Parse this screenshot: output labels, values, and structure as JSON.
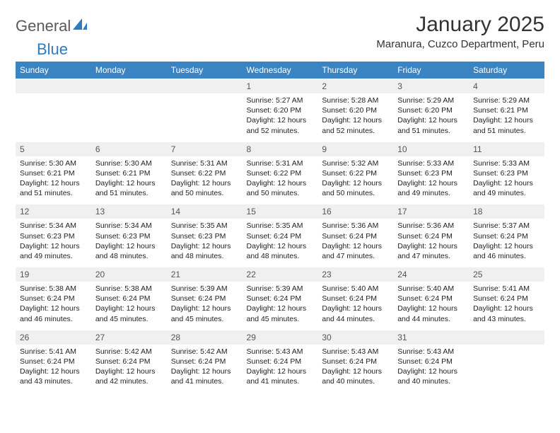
{
  "logo": {
    "part1": "General",
    "part2": "Blue"
  },
  "title": "January 2025",
  "subtitle": "Maranura, Cuzco Department, Peru",
  "colors": {
    "header_bg": "#3b84c4",
    "header_text": "#ffffff",
    "daynum_bg": "#f0f0f0",
    "daynum_text": "#555555",
    "body_text": "#222222",
    "logo_gray": "#5a5a5a",
    "logo_blue": "#2f7bbf"
  },
  "weekdays": [
    "Sunday",
    "Monday",
    "Tuesday",
    "Wednesday",
    "Thursday",
    "Friday",
    "Saturday"
  ],
  "weeks": [
    [
      null,
      null,
      null,
      {
        "d": "1",
        "sr": "5:27 AM",
        "ss": "6:20 PM",
        "dl": "12 hours and 52 minutes."
      },
      {
        "d": "2",
        "sr": "5:28 AM",
        "ss": "6:20 PM",
        "dl": "12 hours and 52 minutes."
      },
      {
        "d": "3",
        "sr": "5:29 AM",
        "ss": "6:20 PM",
        "dl": "12 hours and 51 minutes."
      },
      {
        "d": "4",
        "sr": "5:29 AM",
        "ss": "6:21 PM",
        "dl": "12 hours and 51 minutes."
      }
    ],
    [
      {
        "d": "5",
        "sr": "5:30 AM",
        "ss": "6:21 PM",
        "dl": "12 hours and 51 minutes."
      },
      {
        "d": "6",
        "sr": "5:30 AM",
        "ss": "6:21 PM",
        "dl": "12 hours and 51 minutes."
      },
      {
        "d": "7",
        "sr": "5:31 AM",
        "ss": "6:22 PM",
        "dl": "12 hours and 50 minutes."
      },
      {
        "d": "8",
        "sr": "5:31 AM",
        "ss": "6:22 PM",
        "dl": "12 hours and 50 minutes."
      },
      {
        "d": "9",
        "sr": "5:32 AM",
        "ss": "6:22 PM",
        "dl": "12 hours and 50 minutes."
      },
      {
        "d": "10",
        "sr": "5:33 AM",
        "ss": "6:23 PM",
        "dl": "12 hours and 49 minutes."
      },
      {
        "d": "11",
        "sr": "5:33 AM",
        "ss": "6:23 PM",
        "dl": "12 hours and 49 minutes."
      }
    ],
    [
      {
        "d": "12",
        "sr": "5:34 AM",
        "ss": "6:23 PM",
        "dl": "12 hours and 49 minutes."
      },
      {
        "d": "13",
        "sr": "5:34 AM",
        "ss": "6:23 PM",
        "dl": "12 hours and 48 minutes."
      },
      {
        "d": "14",
        "sr": "5:35 AM",
        "ss": "6:23 PM",
        "dl": "12 hours and 48 minutes."
      },
      {
        "d": "15",
        "sr": "5:35 AM",
        "ss": "6:24 PM",
        "dl": "12 hours and 48 minutes."
      },
      {
        "d": "16",
        "sr": "5:36 AM",
        "ss": "6:24 PM",
        "dl": "12 hours and 47 minutes."
      },
      {
        "d": "17",
        "sr": "5:36 AM",
        "ss": "6:24 PM",
        "dl": "12 hours and 47 minutes."
      },
      {
        "d": "18",
        "sr": "5:37 AM",
        "ss": "6:24 PM",
        "dl": "12 hours and 46 minutes."
      }
    ],
    [
      {
        "d": "19",
        "sr": "5:38 AM",
        "ss": "6:24 PM",
        "dl": "12 hours and 46 minutes."
      },
      {
        "d": "20",
        "sr": "5:38 AM",
        "ss": "6:24 PM",
        "dl": "12 hours and 45 minutes."
      },
      {
        "d": "21",
        "sr": "5:39 AM",
        "ss": "6:24 PM",
        "dl": "12 hours and 45 minutes."
      },
      {
        "d": "22",
        "sr": "5:39 AM",
        "ss": "6:24 PM",
        "dl": "12 hours and 45 minutes."
      },
      {
        "d": "23",
        "sr": "5:40 AM",
        "ss": "6:24 PM",
        "dl": "12 hours and 44 minutes."
      },
      {
        "d": "24",
        "sr": "5:40 AM",
        "ss": "6:24 PM",
        "dl": "12 hours and 44 minutes."
      },
      {
        "d": "25",
        "sr": "5:41 AM",
        "ss": "6:24 PM",
        "dl": "12 hours and 43 minutes."
      }
    ],
    [
      {
        "d": "26",
        "sr": "5:41 AM",
        "ss": "6:24 PM",
        "dl": "12 hours and 43 minutes."
      },
      {
        "d": "27",
        "sr": "5:42 AM",
        "ss": "6:24 PM",
        "dl": "12 hours and 42 minutes."
      },
      {
        "d": "28",
        "sr": "5:42 AM",
        "ss": "6:24 PM",
        "dl": "12 hours and 41 minutes."
      },
      {
        "d": "29",
        "sr": "5:43 AM",
        "ss": "6:24 PM",
        "dl": "12 hours and 41 minutes."
      },
      {
        "d": "30",
        "sr": "5:43 AM",
        "ss": "6:24 PM",
        "dl": "12 hours and 40 minutes."
      },
      {
        "d": "31",
        "sr": "5:43 AM",
        "ss": "6:24 PM",
        "dl": "12 hours and 40 minutes."
      },
      null
    ]
  ],
  "labels": {
    "sunrise": "Sunrise:",
    "sunset": "Sunset:",
    "daylight": "Daylight:"
  }
}
